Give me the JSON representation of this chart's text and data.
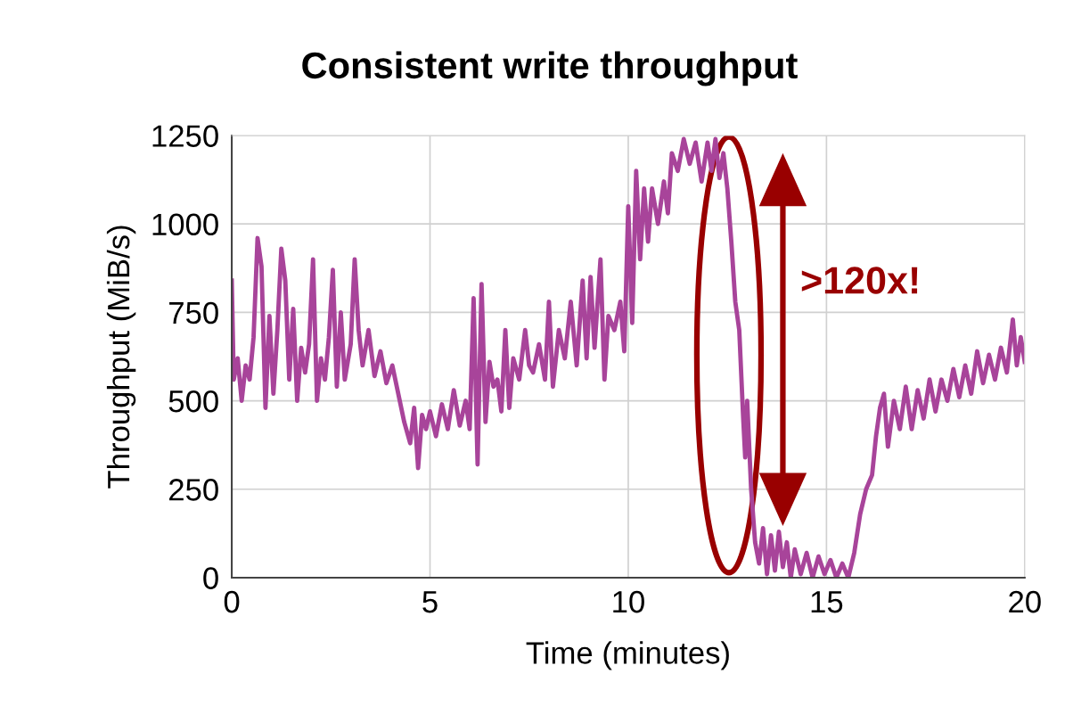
{
  "chart_data": {
    "type": "line",
    "title": "Consistent write throughput",
    "xlabel": "Time (minutes)",
    "ylabel": "Throughput (MiB/s)",
    "xlim": [
      0,
      20
    ],
    "xticks": [
      0,
      5,
      10,
      15,
      20
    ],
    "ylim": [
      0,
      1250
    ],
    "yticks": [
      0,
      250,
      500,
      750,
      1000,
      1250
    ],
    "grid": true,
    "marker": "none",
    "line_style": "solid",
    "annotations": [
      ">120x!"
    ],
    "series": [
      {
        "color": "#a8449a",
        "x": [
          0,
          0.05,
          0.15,
          0.25,
          0.35,
          0.45,
          0.55,
          0.65,
          0.75,
          0.85,
          0.95,
          1.05,
          1.15,
          1.25,
          1.35,
          1.45,
          1.55,
          1.65,
          1.75,
          1.85,
          1.95,
          2.05,
          2.15,
          2.25,
          2.35,
          2.45,
          2.55,
          2.65,
          2.75,
          2.85,
          3.0,
          3.1,
          3.2,
          3.3,
          3.45,
          3.6,
          3.75,
          3.9,
          4.05,
          4.2,
          4.35,
          4.5,
          4.6,
          4.7,
          4.8,
          4.9,
          5.0,
          5.15,
          5.3,
          5.45,
          5.6,
          5.75,
          5.9,
          6.0,
          6.1,
          6.2,
          6.3,
          6.4,
          6.5,
          6.6,
          6.7,
          6.8,
          6.9,
          7.0,
          7.1,
          7.25,
          7.4,
          7.5,
          7.6,
          7.75,
          7.9,
          8.0,
          8.1,
          8.25,
          8.4,
          8.55,
          8.7,
          8.85,
          8.95,
          9.05,
          9.15,
          9.3,
          9.4,
          9.5,
          9.65,
          9.8,
          9.9,
          10.0,
          10.1,
          10.2,
          10.3,
          10.4,
          10.5,
          10.6,
          10.75,
          10.9,
          11.0,
          11.1,
          11.25,
          11.4,
          11.55,
          11.7,
          11.85,
          12.0,
          12.1,
          12.2,
          12.3,
          12.4,
          12.5,
          12.6,
          12.7,
          12.8,
          12.9,
          12.95,
          13.0,
          13.1,
          13.2,
          13.3,
          13.4,
          13.5,
          13.6,
          13.7,
          13.8,
          13.9,
          14.0,
          14.1,
          14.2,
          14.35,
          14.5,
          14.65,
          14.8,
          14.95,
          15.1,
          15.25,
          15.4,
          15.55,
          15.7,
          15.85,
          16.0,
          16.15,
          16.25,
          16.35,
          16.45,
          16.55,
          16.7,
          16.85,
          17.0,
          17.15,
          17.3,
          17.45,
          17.6,
          17.75,
          17.9,
          18.05,
          18.2,
          18.35,
          18.5,
          18.65,
          18.8,
          18.95,
          19.1,
          19.25,
          19.4,
          19.55,
          19.7,
          19.8,
          19.9,
          20.0
        ],
        "values": [
          840,
          560,
          620,
          500,
          600,
          560,
          680,
          960,
          880,
          480,
          740,
          520,
          700,
          930,
          840,
          560,
          760,
          500,
          650,
          580,
          660,
          900,
          500,
          620,
          560,
          680,
          870,
          540,
          750,
          560,
          660,
          900,
          700,
          600,
          700,
          570,
          640,
          550,
          600,
          520,
          440,
          380,
          480,
          310,
          460,
          420,
          470,
          400,
          490,
          420,
          530,
          430,
          500,
          420,
          790,
          320,
          830,
          440,
          610,
          540,
          560,
          470,
          700,
          480,
          620,
          560,
          700,
          600,
          580,
          660,
          560,
          780,
          540,
          700,
          620,
          780,
          600,
          840,
          620,
          850,
          650,
          900,
          560,
          740,
          700,
          780,
          640,
          1050,
          720,
          1150,
          900,
          1100,
          950,
          1100,
          1000,
          1120,
          1030,
          1200,
          1150,
          1240,
          1170,
          1230,
          1120,
          1230,
          1150,
          1240,
          1130,
          1200,
          1100,
          950,
          780,
          700,
          450,
          340,
          500,
          250,
          100,
          40,
          140,
          10,
          120,
          20,
          130,
          30,
          100,
          0,
          80,
          10,
          70,
          0,
          60,
          10,
          50,
          0,
          40,
          0,
          70,
          180,
          250,
          290,
          400,
          480,
          520,
          370,
          500,
          420,
          540,
          420,
          530,
          450,
          560,
          470,
          560,
          500,
          590,
          510,
          600,
          520,
          640,
          550,
          630,
          560,
          650,
          580,
          730,
          600,
          680,
          610
        ]
      }
    ]
  }
}
